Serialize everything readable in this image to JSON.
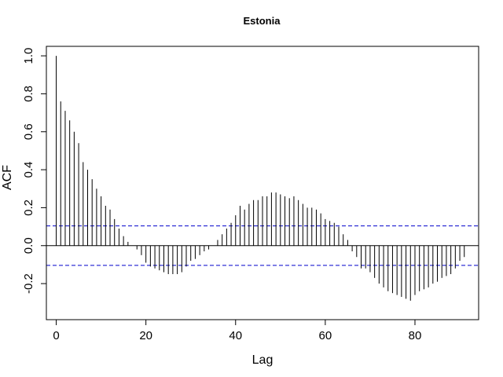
{
  "chart_data": {
    "type": "bar",
    "title": "Estonia",
    "xlabel": "Lag",
    "ylabel": "ACF",
    "xlim": [
      -2.2,
      94.2
    ],
    "ylim": [
      -0.39,
      1.05
    ],
    "xticks": [
      0,
      20,
      40,
      60,
      80
    ],
    "xtick_labels": [
      "0",
      "20",
      "40",
      "60",
      "80"
    ],
    "yticks": [
      -0.2,
      0,
      0.2,
      0.4,
      0.6,
      0.8,
      1
    ],
    "ytick_labels": [
      "-0.2",
      "0.0",
      "0.2",
      "0.4",
      "0.6",
      "0.8",
      "1.0"
    ],
    "confidence_bound": 0.104,
    "bound_color": "#0000cc",
    "bar_color": "#000000",
    "grid": false,
    "lags": [
      0,
      1,
      2,
      3,
      4,
      5,
      6,
      7,
      8,
      9,
      10,
      11,
      12,
      13,
      14,
      15,
      16,
      17,
      18,
      19,
      20,
      21,
      22,
      23,
      24,
      25,
      26,
      27,
      28,
      29,
      30,
      31,
      32,
      33,
      34,
      35,
      36,
      37,
      38,
      39,
      40,
      41,
      42,
      43,
      44,
      45,
      46,
      47,
      48,
      49,
      50,
      51,
      52,
      53,
      54,
      55,
      56,
      57,
      58,
      59,
      60,
      61,
      62,
      63,
      64,
      65,
      66,
      67,
      68,
      69,
      70,
      71,
      72,
      73,
      74,
      75,
      76,
      77,
      78,
      79,
      80,
      81,
      82,
      83,
      84,
      85,
      86,
      87,
      88,
      89,
      90,
      91
    ],
    "values": [
      1.0,
      0.76,
      0.71,
      0.66,
      0.6,
      0.54,
      0.44,
      0.4,
      0.35,
      0.3,
      0.26,
      0.21,
      0.19,
      0.14,
      0.09,
      0.05,
      0.02,
      0.0,
      -0.02,
      -0.05,
      -0.09,
      -0.11,
      -0.12,
      -0.13,
      -0.14,
      -0.15,
      -0.15,
      -0.15,
      -0.14,
      -0.11,
      -0.08,
      -0.07,
      -0.05,
      -0.03,
      -0.02,
      0.0,
      0.03,
      0.06,
      0.09,
      0.12,
      0.16,
      0.21,
      0.19,
      0.22,
      0.24,
      0.24,
      0.26,
      0.26,
      0.28,
      0.28,
      0.27,
      0.26,
      0.25,
      0.26,
      0.24,
      0.22,
      0.2,
      0.2,
      0.19,
      0.17,
      0.14,
      0.13,
      0.12,
      0.1,
      0.06,
      0.03,
      -0.03,
      -0.06,
      -0.12,
      -0.12,
      -0.14,
      -0.17,
      -0.2,
      -0.22,
      -0.24,
      -0.25,
      -0.26,
      -0.27,
      -0.28,
      -0.29,
      -0.26,
      -0.24,
      -0.23,
      -0.22,
      -0.2,
      -0.19,
      -0.17,
      -0.16,
      -0.15,
      -0.12,
      -0.08,
      -0.06
    ]
  }
}
